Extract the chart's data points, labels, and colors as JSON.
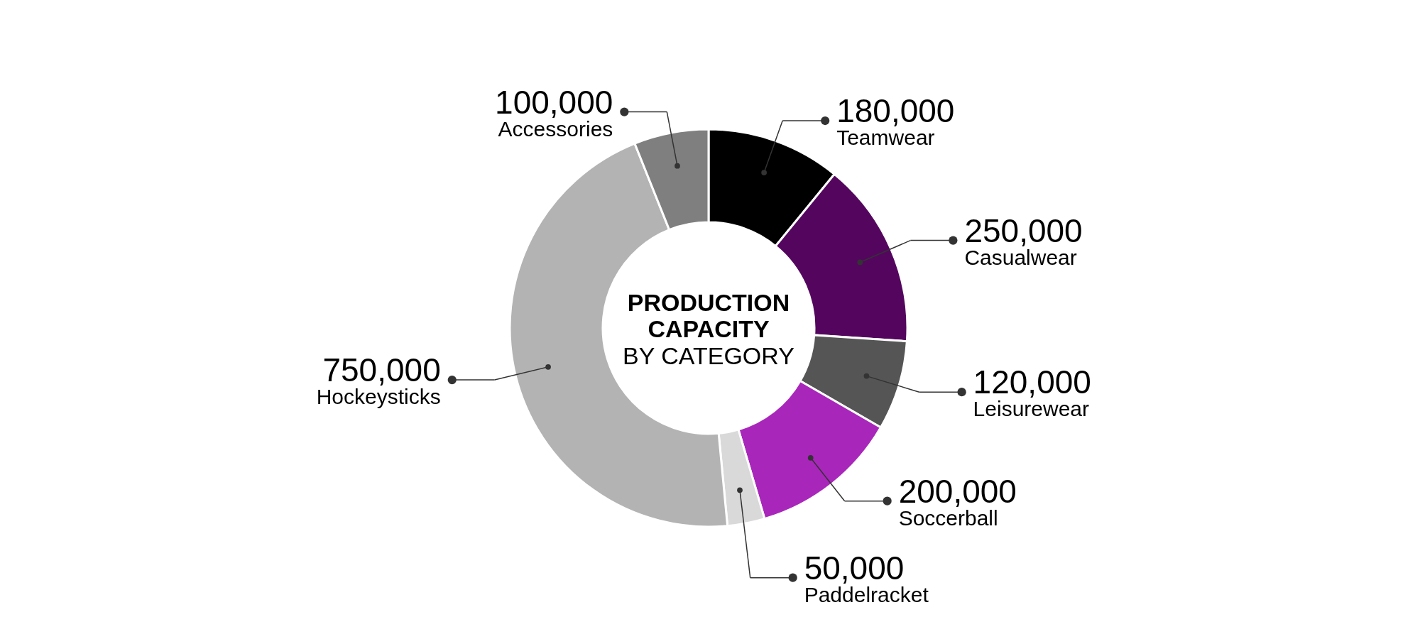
{
  "chart_data": {
    "type": "donut",
    "title": "PRODUCTION CAPACITY",
    "subtitle": "BY CATEGORY",
    "categories": [
      "Teamwear",
      "Casualwear",
      "Leisurewear",
      "Soccerball",
      "Paddelracket",
      "Hockeysticks",
      "Accessories"
    ],
    "values": [
      180000,
      250000,
      120000,
      200000,
      50000,
      750000,
      100000
    ],
    "value_labels": [
      "180,000",
      "250,000",
      "120,000",
      "200,000",
      "50,000",
      "750,000",
      "100,000"
    ],
    "colors": [
      "#000000",
      "#54065e",
      "#555555",
      "#a926bb",
      "#d9d9d9",
      "#b3b3b3",
      "#7f7f7f"
    ]
  }
}
